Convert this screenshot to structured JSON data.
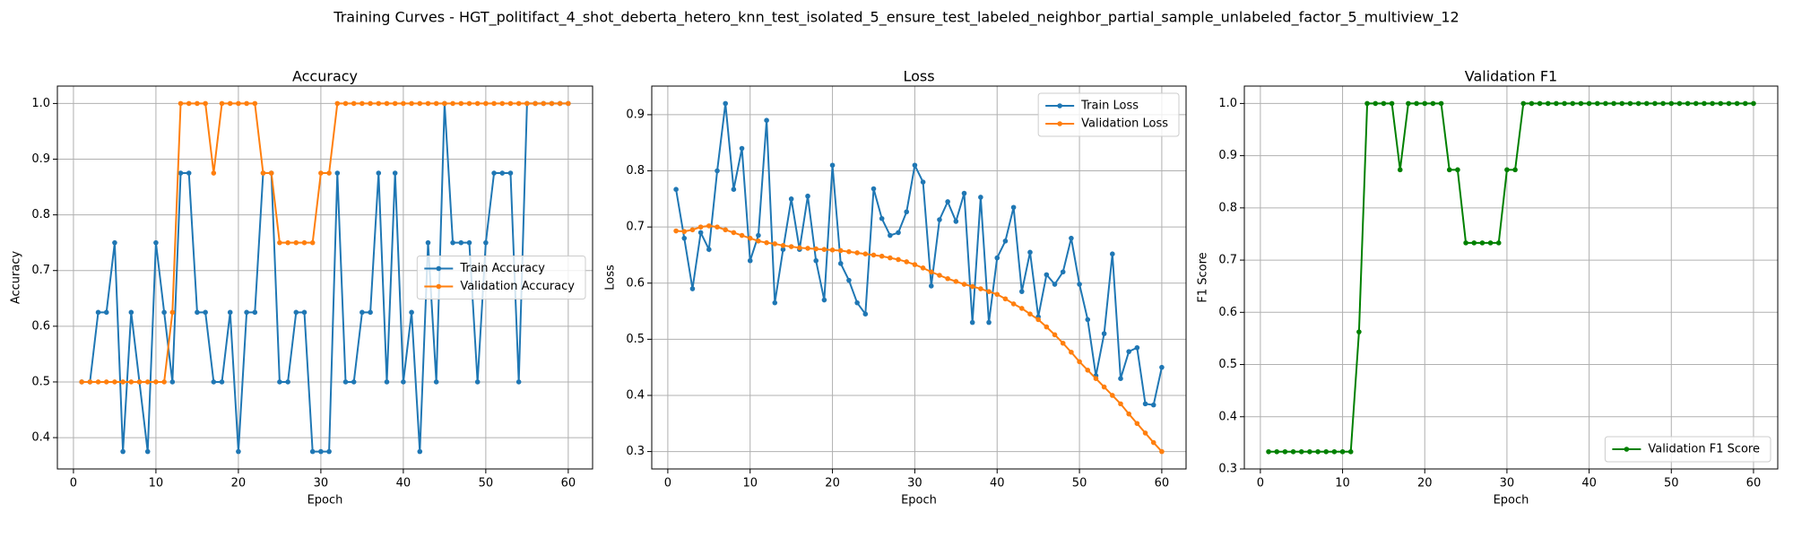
{
  "title": "Training Curves - HGT_politifact_4_shot_deberta_hetero_knn_test_isolated_5_ensure_test_labeled_neighbor_partial_sample_unlabeled_factor_5_multiview_12",
  "chart_data": [
    {
      "type": "line",
      "title": "Accuracy",
      "x_label": "Epoch",
      "y_label": "Accuracy",
      "x": [
        1,
        2,
        3,
        4,
        5,
        6,
        7,
        8,
        9,
        10,
        11,
        12,
        13,
        14,
        15,
        16,
        17,
        18,
        19,
        20,
        21,
        22,
        23,
        24,
        25,
        26,
        27,
        28,
        29,
        30,
        31,
        32,
        33,
        34,
        35,
        36,
        37,
        38,
        39,
        40,
        41,
        42,
        43,
        44,
        45,
        46,
        47,
        48,
        49,
        50,
        51,
        52,
        53,
        54,
        55,
        56,
        57,
        58,
        59,
        60
      ],
      "series": [
        {
          "name": "Train Accuracy",
          "color": "#1f77b4",
          "values": [
            0.5,
            0.5,
            0.625,
            0.625,
            0.75,
            0.375,
            0.625,
            0.5,
            0.375,
            0.75,
            0.625,
            0.5,
            0.875,
            0.875,
            0.625,
            0.625,
            0.5,
            0.5,
            0.625,
            0.375,
            0.625,
            0.625,
            0.875,
            0.875,
            0.5,
            0.5,
            0.625,
            0.625,
            0.375,
            0.375,
            0.375,
            0.875,
            0.5,
            0.5,
            0.625,
            0.625,
            0.875,
            0.5,
            0.875,
            0.5,
            0.625,
            0.375,
            0.75,
            0.5,
            1.0,
            0.75,
            0.75,
            0.75,
            0.5,
            0.75,
            0.875,
            0.875,
            0.875,
            0.5,
            1.0,
            1.0,
            1.0,
            1.0,
            1.0,
            1.0
          ]
        },
        {
          "name": "Validation Accuracy",
          "color": "#ff7f0e",
          "values": [
            0.5,
            0.5,
            0.5,
            0.5,
            0.5,
            0.5,
            0.5,
            0.5,
            0.5,
            0.5,
            0.5,
            0.625,
            1.0,
            1.0,
            1.0,
            1.0,
            0.875,
            1.0,
            1.0,
            1.0,
            1.0,
            1.0,
            0.875,
            0.875,
            0.75,
            0.75,
            0.75,
            0.75,
            0.75,
            0.875,
            0.875,
            1.0,
            1.0,
            1.0,
            1.0,
            1.0,
            1.0,
            1.0,
            1.0,
            1.0,
            1.0,
            1.0,
            1.0,
            1.0,
            1.0,
            1.0,
            1.0,
            1.0,
            1.0,
            1.0,
            1.0,
            1.0,
            1.0,
            1.0,
            1.0,
            1.0,
            1.0,
            1.0,
            1.0,
            1.0
          ]
        }
      ],
      "xlim": [
        -1.95,
        62.95
      ],
      "xticks": [
        0,
        10,
        20,
        30,
        40,
        50,
        60
      ],
      "ylim": [
        0.34375,
        1.03125
      ],
      "yticks": [
        0.4,
        0.5,
        0.6,
        0.7,
        0.8,
        0.9,
        {
          "value": 1,
          "label": "1.0"
        }
      ],
      "grid": true,
      "legend": "center right"
    },
    {
      "type": "line",
      "title": "Loss",
      "x_label": "Epoch",
      "y_label": "Loss",
      "x": [
        1,
        2,
        3,
        4,
        5,
        6,
        7,
        8,
        9,
        10,
        11,
        12,
        13,
        14,
        15,
        16,
        17,
        18,
        19,
        20,
        21,
        22,
        23,
        24,
        25,
        26,
        27,
        28,
        29,
        30,
        31,
        32,
        33,
        34,
        35,
        36,
        37,
        38,
        39,
        40,
        41,
        42,
        43,
        44,
        45,
        46,
        47,
        48,
        49,
        50,
        51,
        52,
        53,
        54,
        55,
        56,
        57,
        58,
        59,
        60
      ],
      "series": [
        {
          "name": "Train Loss",
          "color": "#1f77b4",
          "values": [
            0.767,
            0.68,
            0.59,
            0.69,
            0.66,
            0.8,
            0.92,
            0.767,
            0.84,
            0.64,
            0.685,
            0.89,
            0.565,
            0.66,
            0.75,
            0.66,
            0.755,
            0.64,
            0.57,
            0.81,
            0.635,
            0.605,
            0.565,
            0.545,
            0.768,
            0.715,
            0.685,
            0.69,
            0.727,
            0.81,
            0.78,
            0.595,
            0.713,
            0.745,
            0.71,
            0.76,
            0.53,
            0.753,
            0.53,
            0.645,
            0.675,
            0.735,
            0.585,
            0.655,
            0.54,
            0.615,
            0.598,
            0.62,
            0.68,
            0.598,
            0.535,
            0.435,
            0.51,
            0.652,
            0.43,
            0.478,
            0.485,
            0.385,
            0.383,
            0.45
          ]
        },
        {
          "name": "Validation Loss",
          "color": "#ff7f0e",
          "values": [
            0.693,
            0.692,
            0.695,
            0.7,
            0.702,
            0.7,
            0.695,
            0.69,
            0.685,
            0.68,
            0.675,
            0.672,
            0.67,
            0.667,
            0.665,
            0.663,
            0.662,
            0.661,
            0.66,
            0.659,
            0.658,
            0.656,
            0.654,
            0.652,
            0.65,
            0.648,
            0.645,
            0.642,
            0.638,
            0.633,
            0.627,
            0.62,
            0.614,
            0.608,
            0.603,
            0.598,
            0.594,
            0.59,
            0.585,
            0.58,
            0.572,
            0.563,
            0.555,
            0.545,
            0.535,
            0.522,
            0.508,
            0.493,
            0.477,
            0.46,
            0.445,
            0.43,
            0.415,
            0.4,
            0.385,
            0.367,
            0.35,
            0.333,
            0.316,
            0.3
          ]
        }
      ],
      "xlim": [
        -1.95,
        62.95
      ],
      "xticks": [
        0,
        10,
        20,
        30,
        40,
        50,
        60
      ],
      "ylim": [
        0.269,
        0.951
      ],
      "yticks": [
        0.3,
        0.4,
        0.5,
        0.6,
        0.7,
        0.8,
        0.9
      ],
      "grid": true,
      "legend": "upper right"
    },
    {
      "type": "line",
      "title": "Validation F1",
      "x_label": "Epoch",
      "y_label": "F1 Score",
      "x": [
        1,
        2,
        3,
        4,
        5,
        6,
        7,
        8,
        9,
        10,
        11,
        12,
        13,
        14,
        15,
        16,
        17,
        18,
        19,
        20,
        21,
        22,
        23,
        24,
        25,
        26,
        27,
        28,
        29,
        30,
        31,
        32,
        33,
        34,
        35,
        36,
        37,
        38,
        39,
        40,
        41,
        42,
        43,
        44,
        45,
        46,
        47,
        48,
        49,
        50,
        51,
        52,
        53,
        54,
        55,
        56,
        57,
        58,
        59,
        60
      ],
      "series": [
        {
          "name": "Validation F1 Score",
          "color": "#008000",
          "values": [
            0.333,
            0.333,
            0.333,
            0.333,
            0.333,
            0.333,
            0.333,
            0.333,
            0.333,
            0.333,
            0.333,
            0.5625,
            1.0,
            1.0,
            1.0,
            1.0,
            0.873,
            1.0,
            1.0,
            1.0,
            1.0,
            1.0,
            0.873,
            0.873,
            0.733,
            0.733,
            0.733,
            0.733,
            0.733,
            0.873,
            0.873,
            1.0,
            1.0,
            1.0,
            1.0,
            1.0,
            1.0,
            1.0,
            1.0,
            1.0,
            1.0,
            1.0,
            1.0,
            1.0,
            1.0,
            1.0,
            1.0,
            1.0,
            1.0,
            1.0,
            1.0,
            1.0,
            1.0,
            1.0,
            1.0,
            1.0,
            1.0,
            1.0,
            1.0,
            1.0
          ]
        }
      ],
      "xlim": [
        -1.95,
        62.95
      ],
      "xticks": [
        0,
        10,
        20,
        30,
        40,
        50,
        60
      ],
      "ylim": [
        0.3,
        1.0333
      ],
      "yticks": [
        0.3,
        0.4,
        0.5,
        0.6,
        0.7,
        0.8,
        0.9,
        {
          "value": 1,
          "label": "1.0"
        }
      ],
      "grid": true,
      "legend": "lower right"
    }
  ]
}
